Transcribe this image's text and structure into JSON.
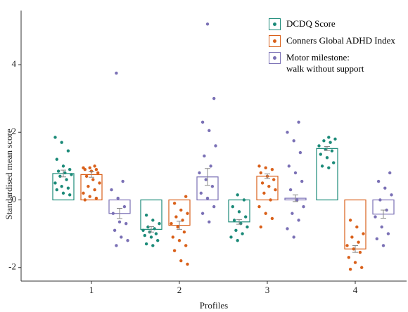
{
  "chart_data": {
    "type": "bar",
    "x_label": "Profiles",
    "y_label": "Standardised mean score",
    "categories": [
      "1",
      "2",
      "3",
      "4"
    ],
    "ylim": [
      -2.4,
      5.6
    ],
    "yticks": [
      -2,
      0,
      2,
      4
    ],
    "series": [
      {
        "name": "DCDQ Score",
        "color": "#1b8a78",
        "values": [
          0.78,
          -0.87,
          -0.65,
          1.52
        ],
        "errors": [
          0.1,
          0.08,
          0.07,
          0.06
        ],
        "points": [
          [
            1.85,
            1.7,
            1.45,
            1.2,
            1.0,
            0.9,
            0.85,
            0.8,
            0.75,
            0.7,
            0.6,
            0.5,
            0.4,
            0.35,
            0.3,
            0.2,
            0.15
          ],
          [
            -0.45,
            -0.6,
            -0.7,
            -0.8,
            -0.85,
            -0.9,
            -0.95,
            -1.0,
            -1.05,
            -1.1,
            -1.2,
            -1.3,
            -1.35
          ],
          [
            0.15,
            0.0,
            -0.2,
            -0.35,
            -0.5,
            -0.6,
            -0.7,
            -0.8,
            -0.9,
            -1.0,
            -1.1,
            -1.2
          ],
          [
            1.85,
            1.8,
            1.75,
            1.7,
            1.6,
            1.5,
            1.45,
            1.35,
            1.25,
            1.1,
            1.0,
            0.95
          ]
        ]
      },
      {
        "name": "Conners Global ADHD Index",
        "color": "#d9601a",
        "values": [
          0.75,
          -0.75,
          0.7,
          -1.45
        ],
        "errors": [
          0.08,
          0.12,
          0.07,
          0.1
        ],
        "points": [
          [
            1.0,
            0.95,
            0.95,
            0.9,
            0.9,
            0.85,
            0.8,
            0.7,
            0.6,
            0.5,
            0.4,
            0.3,
            0.2,
            0.1,
            0.05,
            0.0
          ],
          [
            0.1,
            -0.1,
            -0.3,
            -0.4,
            -0.5,
            -0.6,
            -0.7,
            -0.8,
            -0.95,
            -1.1,
            -1.2,
            -1.35,
            -1.5,
            -1.8,
            -1.9
          ],
          [
            1.0,
            0.95,
            0.9,
            0.8,
            0.7,
            0.6,
            0.5,
            0.4,
            0.3,
            0.2,
            0.0,
            -0.2,
            -0.4,
            -0.55,
            -0.8
          ],
          [
            -0.6,
            -0.8,
            -1.0,
            -1.1,
            -1.25,
            -1.35,
            -1.45,
            -1.55,
            -1.7,
            -1.85,
            -2.0,
            -2.05
          ]
        ]
      },
      {
        "name": "Motor milestone:\nwalk without support",
        "color": "#7a70b5",
        "values": [
          -0.4,
          0.68,
          0.05,
          -0.42
        ],
        "errors": [
          0.15,
          0.25,
          0.1,
          0.12
        ],
        "points": [
          [
            3.75,
            0.55,
            0.3,
            0.05,
            -0.2,
            -0.4,
            -0.65,
            -0.7,
            -0.9,
            -1.1,
            -1.2,
            -1.35
          ],
          [
            5.2,
            3.0,
            2.3,
            2.05,
            1.6,
            1.3,
            1.0,
            0.8,
            0.6,
            0.4,
            0.2,
            0.05,
            -0.2,
            -0.4,
            -0.65
          ],
          [
            2.3,
            2.0,
            1.75,
            1.4,
            1.0,
            0.8,
            0.55,
            0.3,
            0.0,
            -0.2,
            -0.4,
            -0.6,
            -0.85,
            -1.1
          ],
          [
            0.8,
            0.55,
            0.35,
            0.15,
            0.0,
            -0.3,
            -0.5,
            -0.8,
            -1.0,
            -1.15,
            -1.35
          ]
        ]
      }
    ]
  }
}
